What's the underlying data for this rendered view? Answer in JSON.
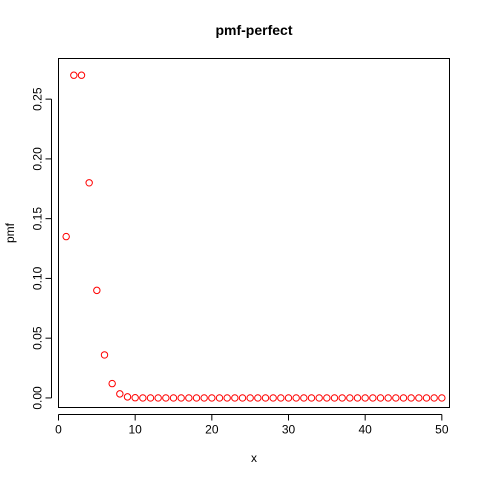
{
  "chart_data": {
    "type": "scatter",
    "title": "pmf-perfect",
    "xlabel": "x",
    "ylabel": "pmf",
    "xlim": [
      0,
      51
    ],
    "ylim": [
      -0.008,
      0.284
    ],
    "x_ticks": [
      0,
      10,
      20,
      30,
      40,
      50
    ],
    "x_tick_labels": [
      "0",
      "10",
      "20",
      "30",
      "40",
      "50"
    ],
    "y_ticks": [
      0,
      0.05,
      0.1,
      0.15,
      0.2,
      0.25
    ],
    "y_tick_labels": [
      "0.00",
      "0.05",
      "0.10",
      "0.15",
      "0.20",
      "0.25"
    ],
    "grid": false,
    "marker": "open-circle",
    "point_color": "#ff0000",
    "x": [
      1,
      2,
      3,
      4,
      5,
      6,
      7,
      8,
      9,
      10,
      11,
      12,
      13,
      14,
      15,
      16,
      17,
      18,
      19,
      20,
      21,
      22,
      23,
      24,
      25,
      26,
      27,
      28,
      29,
      30,
      31,
      32,
      33,
      34,
      35,
      36,
      37,
      38,
      39,
      40,
      41,
      42,
      43,
      44,
      45,
      46,
      47,
      48,
      49,
      50
    ],
    "y": [
      0.135,
      0.27,
      0.27,
      0.18,
      0.09,
      0.036,
      0.012,
      0.0034,
      0.0009,
      0.0002,
      0,
      0,
      0,
      0,
      0,
      0,
      0,
      0,
      0,
      0,
      0,
      0,
      0,
      0,
      0,
      0,
      0,
      0,
      0,
      0,
      0,
      0,
      0,
      0,
      0,
      0,
      0,
      0,
      0,
      0,
      0,
      0,
      0,
      0,
      0,
      0,
      0,
      0,
      0,
      0
    ]
  }
}
